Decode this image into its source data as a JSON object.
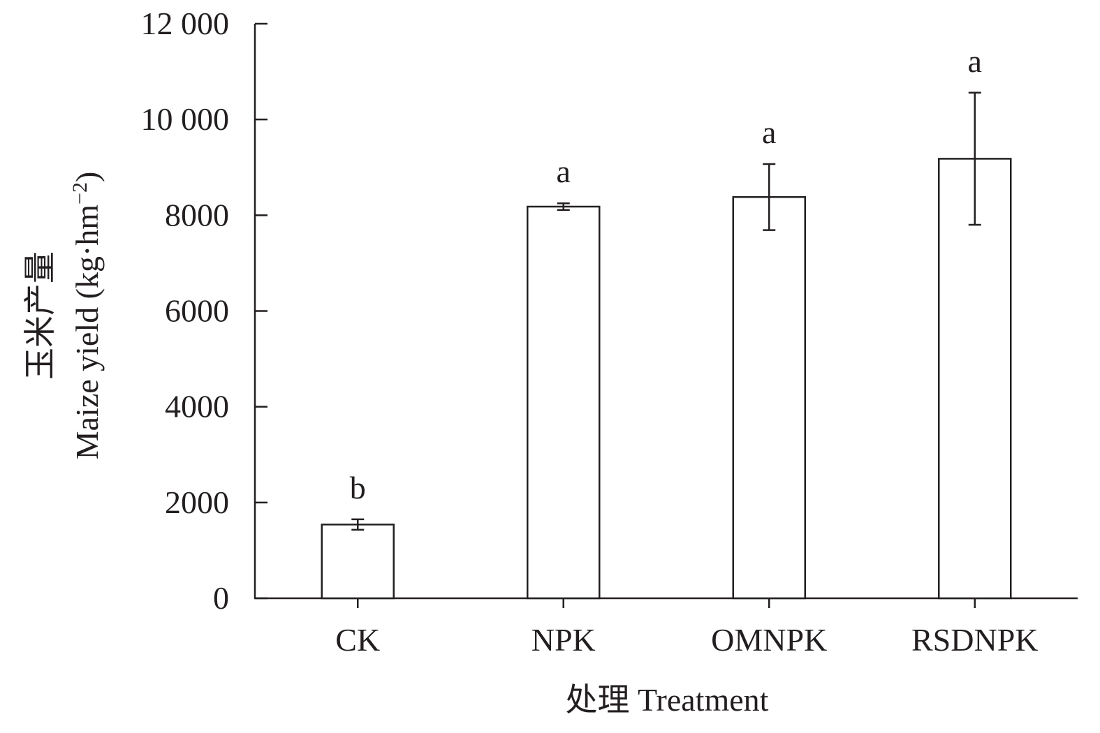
{
  "chart_data": {
    "type": "bar",
    "title": "",
    "xlabel": "处理 Treatment",
    "ylabel_cn": "玉米产量",
    "ylabel_en": "Maize yield (kg·hm",
    "ylabel_sup": "−2",
    "ylabel_close": ")",
    "ylim": [
      0,
      12000
    ],
    "yticks": [
      {
        "value": 0,
        "label": "0"
      },
      {
        "value": 2000,
        "label": "2000"
      },
      {
        "value": 4000,
        "label": "4000"
      },
      {
        "value": 6000,
        "label": "6000"
      },
      {
        "value": 8000,
        "label": "8000"
      },
      {
        "value": 10000,
        "label": "10 000"
      },
      {
        "value": 12000,
        "label": "12 000"
      }
    ],
    "categories": [
      "CK",
      "NPK",
      "OMNPK",
      "RSDNPK"
    ],
    "values": [
      1540,
      8180,
      8380,
      9180
    ],
    "errors": [
      110,
      70,
      690,
      1380
    ],
    "significance": [
      "b",
      "a",
      "a",
      "a"
    ],
    "grid": false,
    "legend": "none",
    "colors": {
      "bar_fill": "#ffffff",
      "stroke": "#231f20",
      "text": "#231f20"
    }
  }
}
